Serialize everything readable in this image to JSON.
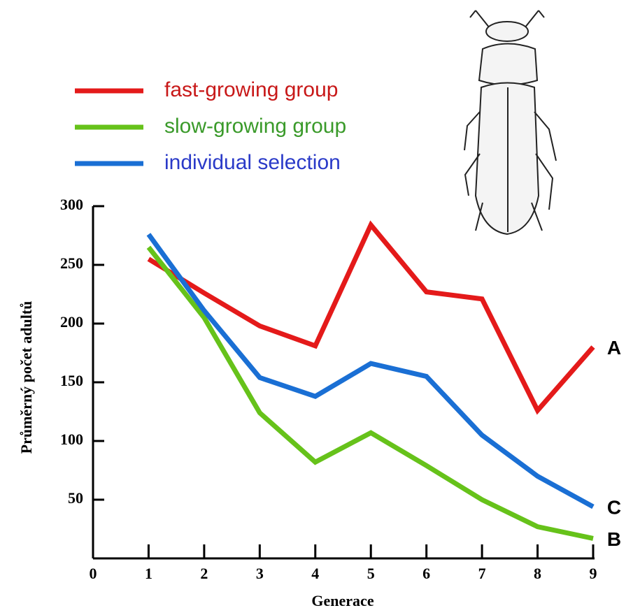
{
  "chart_data": {
    "type": "line",
    "x_label": "Generace",
    "y_label": "Průměrný počet adultů",
    "x": [
      1,
      2,
      3,
      4,
      5,
      6,
      7,
      8,
      9
    ],
    "series": [
      {
        "name": "fast-growing group",
        "color": "#e41a1a",
        "values": [
          255,
          226,
          198,
          181,
          284,
          227,
          221,
          126,
          180
        ]
      },
      {
        "name": "slow-growing group",
        "color": "#66c21a",
        "values": [
          265,
          205,
          124,
          82,
          107,
          79,
          50,
          27,
          17
        ]
      },
      {
        "name": "individual selection",
        "color": "#1a6fd4",
        "values": [
          276,
          211,
          154,
          138,
          166,
          155,
          105,
          70,
          44
        ]
      }
    ],
    "legend_text_colors": [
      "#c81818",
      "#3a9a2a",
      "#2a3ac8"
    ],
    "annotations": [
      {
        "text": "A",
        "x": 9,
        "y": 180
      },
      {
        "text": "C",
        "x": 9,
        "y": 44
      },
      {
        "text": "B",
        "x": 9,
        "y": 17
      }
    ],
    "xlim": [
      0,
      9
    ],
    "ylim": [
      0,
      300
    ],
    "xticks": [
      0,
      1,
      2,
      3,
      4,
      5,
      6,
      7,
      8,
      9
    ],
    "yticks": [
      50,
      100,
      150,
      200,
      250,
      300
    ],
    "grid": false
  }
}
